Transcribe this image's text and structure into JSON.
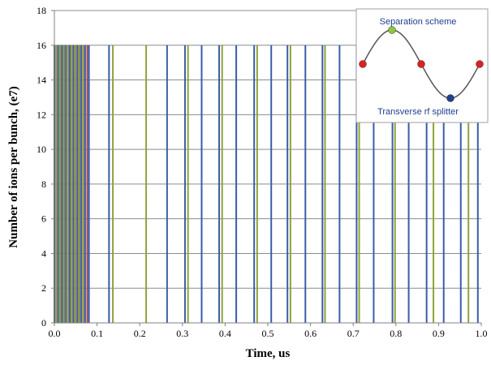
{
  "chart_data": {
    "type": "bar",
    "title": "",
    "xlabel": "Time, us",
    "ylabel": "Number of ions per bunch, (e7)",
    "xlim": [
      0.0,
      1.0
    ],
    "ylim": [
      0,
      18
    ],
    "xticks": [
      "0.0",
      "0.1",
      "0.2",
      "0.3",
      "0.4",
      "0.5",
      "0.6",
      "0.7",
      "0.8",
      "0.9",
      "1.0"
    ],
    "yticks": [
      "0",
      "2",
      "4",
      "6",
      "8",
      "10",
      "12",
      "14",
      "16",
      "18"
    ],
    "grid": true,
    "series": [
      {
        "color": "#b04a4a",
        "x": [
          0.005,
          0.014,
          0.023,
          0.032,
          0.041,
          0.05,
          0.059,
          0.068,
          0.077
        ],
        "values": [
          16,
          16,
          16,
          16,
          16,
          16,
          16,
          16,
          16
        ]
      },
      {
        "color": "#3a5ea8",
        "x": [
          0.0,
          0.009,
          0.018,
          0.027,
          0.036,
          0.045,
          0.054,
          0.063,
          0.072,
          0.081,
          0.128,
          0.264,
          0.306,
          0.345,
          0.386,
          0.426,
          0.468,
          0.508,
          0.546,
          0.588,
          0.628,
          0.668,
          0.708,
          0.748,
          0.792,
          0.83,
          0.872,
          0.912,
          0.952,
          0.992
        ],
        "values": [
          16,
          16,
          16,
          16,
          16,
          16,
          16,
          16,
          16,
          16,
          16,
          16,
          16,
          16,
          16,
          16,
          16,
          16,
          16,
          16,
          16,
          16,
          16,
          16,
          16,
          16,
          16,
          16,
          16,
          16
        ]
      },
      {
        "color": "#8ea43a",
        "x": [
          0.004,
          0.013,
          0.022,
          0.031,
          0.04,
          0.049,
          0.058,
          0.067,
          0.137,
          0.215,
          0.313,
          0.393,
          0.475,
          0.553,
          0.634,
          0.714,
          0.798,
          0.888,
          0.97
        ],
        "values": [
          16,
          16,
          16,
          16,
          16,
          16,
          16,
          16,
          16,
          16,
          16,
          16,
          16,
          16,
          16,
          16,
          16,
          16,
          16
        ]
      }
    ],
    "inset": {
      "top_label": "Separation scheme",
      "bottom_label": "Transverse rf splitter",
      "curve_color": "#555555",
      "points": [
        {
          "color": "#e02020"
        },
        {
          "color": "#8dc63f"
        },
        {
          "color": "#e02020"
        },
        {
          "color": "#1f3f8f"
        },
        {
          "color": "#e02020"
        }
      ]
    }
  }
}
